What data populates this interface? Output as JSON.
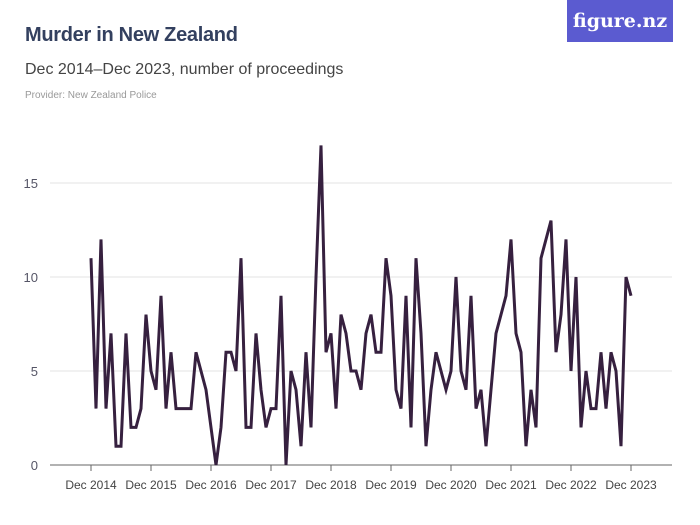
{
  "header": {
    "title": "Murder in New Zealand",
    "subtitle": "Dec 2014–Dec 2023, number of proceedings",
    "provider": "Provider: New Zealand Police",
    "logo": "figure.nz"
  },
  "colors": {
    "line": "#36203f",
    "logo_bg": "#5b5bd0",
    "title": "#33405f"
  },
  "chart_data": {
    "type": "line",
    "title": "Murder in New Zealand",
    "subtitle": "Dec 2014–Dec 2023, number of proceedings",
    "x_start": "Dec 2014",
    "x_end": "Dec 2023",
    "x_interval": "monthly",
    "xticks": [
      "Dec 2014",
      "Dec 2015",
      "Dec 2016",
      "Dec 2017",
      "Dec 2018",
      "Dec 2019",
      "Dec 2020",
      "Dec 2021",
      "Dec 2022",
      "Dec 2023"
    ],
    "yticks": [
      0,
      5,
      10,
      15
    ],
    "ylim": [
      0,
      17
    ],
    "grid": true,
    "values": [
      11,
      3,
      12,
      3,
      7,
      1,
      1,
      7,
      2,
      2,
      3,
      8,
      5,
      4,
      9,
      3,
      6,
      3,
      3,
      3,
      3,
      6,
      5,
      4,
      2,
      0,
      2,
      6,
      6,
      5,
      11,
      2,
      2,
      7,
      4,
      2,
      3,
      3,
      9,
      0,
      5,
      4,
      1,
      6,
      2,
      10,
      17,
      6,
      7,
      3,
      8,
      7,
      5,
      5,
      4,
      7,
      8,
      6,
      6,
      11,
      9,
      4,
      3,
      9,
      2,
      11,
      7,
      1,
      4,
      6,
      5,
      4,
      5,
      10,
      5,
      4,
      9,
      3,
      4,
      1,
      4,
      7,
      8,
      9,
      12,
      7,
      6,
      1,
      4,
      2,
      11,
      12,
      13,
      6,
      8,
      12,
      5,
      10,
      2,
      5,
      3,
      3,
      6,
      3,
      6,
      5,
      1,
      10,
      9
    ]
  }
}
